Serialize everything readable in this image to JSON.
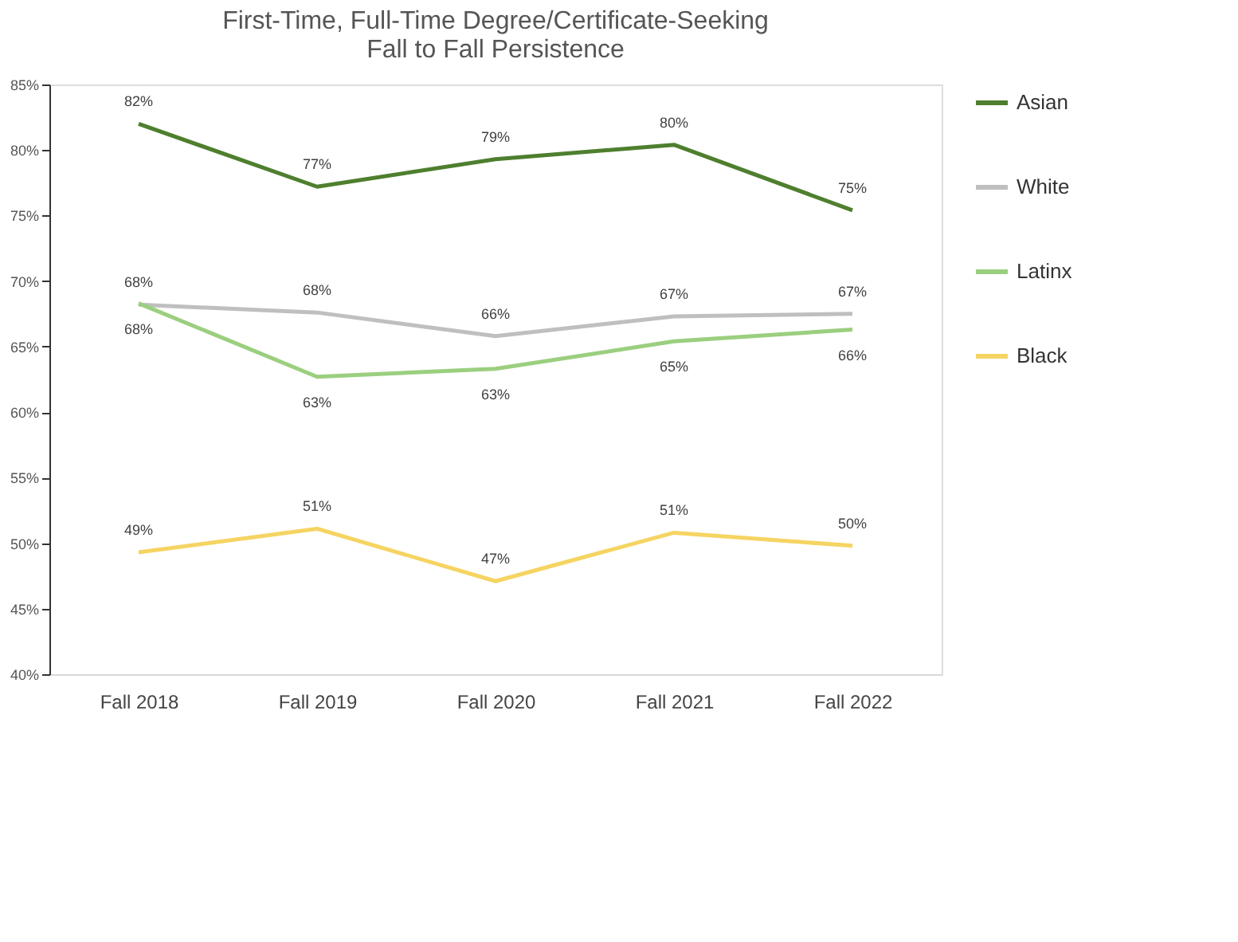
{
  "chart_data": {
    "type": "line",
    "title": [
      "First-Time, Full-Time Degree/Certificate-Seeking",
      "Fall to Fall Persistence"
    ],
    "categories": [
      "Fall 2018",
      "Fall 2019",
      "Fall 2020",
      "Fall 2021",
      "Fall 2022"
    ],
    "series": [
      {
        "name": "Asian",
        "color": "#4e7f2e",
        "values": [
          82.0,
          77.2,
          79.3,
          80.4,
          75.4
        ],
        "value_labels": [
          "82%",
          "77%",
          "79%",
          "80%",
          "75%"
        ]
      },
      {
        "name": "White",
        "color": "#bfbfbf",
        "values": [
          68.2,
          67.6,
          65.8,
          67.3,
          67.5
        ],
        "value_labels": [
          "68%",
          "68%",
          "66%",
          "67%",
          "67%"
        ]
      },
      {
        "name": "Latinx",
        "color": "#9bcf7f",
        "values": [
          68.3,
          62.7,
          63.3,
          65.4,
          66.3
        ],
        "value_labels": [
          "68%",
          "63%",
          "63%",
          "65%",
          "66%"
        ]
      },
      {
        "name": "Black",
        "color": "#f5d462",
        "values": [
          49.3,
          51.1,
          47.1,
          50.8,
          49.8
        ],
        "value_labels": [
          "49%",
          "51%",
          "47%",
          "51%",
          "50%"
        ]
      }
    ],
    "ylim": [
      40,
      85
    ],
    "yticks": [
      {
        "value": 40,
        "label": "40%"
      },
      {
        "value": 45,
        "label": "45%"
      },
      {
        "value": 50,
        "label": "50%"
      },
      {
        "value": 55,
        "label": "55%"
      },
      {
        "value": 60,
        "label": "60%"
      },
      {
        "value": 65,
        "label": "65%"
      },
      {
        "value": 70,
        "label": "70%"
      },
      {
        "value": 75,
        "label": "75%"
      },
      {
        "value": 80,
        "label": "80%"
      },
      {
        "value": 85,
        "label": "85%"
      }
    ],
    "grid": false,
    "legend": "right",
    "marker": "none",
    "line_style": "solid"
  }
}
